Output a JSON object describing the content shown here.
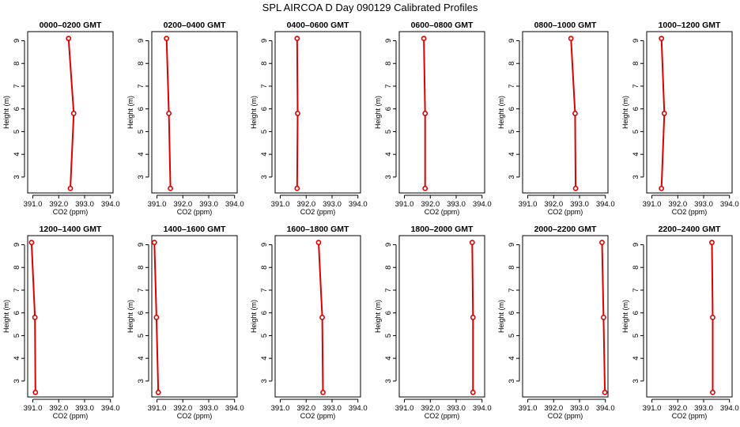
{
  "title": "SPL AIRCOA D  Day 090129  Calibrated Profiles",
  "colors": {
    "profile": "#dd0000",
    "axes": "#000000",
    "background": "#ffffff"
  },
  "chart_data": [
    {
      "type": "line",
      "title": "0000–0200 GMT",
      "xlabel": "CO2 (ppm)",
      "ylabel": "Height (m)",
      "xlim": [
        390.8,
        394.1
      ],
      "ylim": [
        2.3,
        9.4
      ],
      "x_ticks": [
        "391.0",
        "392.0",
        "393.0",
        "394.0"
      ],
      "y_ticks": [
        "3",
        "4",
        "5",
        "6",
        "7",
        "8",
        "9"
      ],
      "series": [
        {
          "x": [
            392.45,
            392.58,
            392.38
          ],
          "y": [
            2.5,
            5.8,
            9.1
          ]
        }
      ]
    },
    {
      "type": "line",
      "title": "0200–0400 GMT",
      "xlabel": "CO2 (ppm)",
      "ylabel": "Height (m)",
      "xlim": [
        390.8,
        394.1
      ],
      "ylim": [
        2.3,
        9.4
      ],
      "x_ticks": [
        "391.0",
        "392.0",
        "393.0",
        "394.0"
      ],
      "y_ticks": [
        "3",
        "4",
        "5",
        "6",
        "7",
        "8",
        "9"
      ],
      "series": [
        {
          "x": [
            391.52,
            391.46,
            391.37
          ],
          "y": [
            2.5,
            5.8,
            9.1
          ]
        }
      ]
    },
    {
      "type": "line",
      "title": "0400–0600 GMT",
      "xlabel": "CO2 (ppm)",
      "ylabel": "Height (m)",
      "xlim": [
        390.8,
        394.1
      ],
      "ylim": [
        2.3,
        9.4
      ],
      "x_ticks": [
        "391.0",
        "392.0",
        "393.0",
        "394.0"
      ],
      "y_ticks": [
        "3",
        "4",
        "5",
        "6",
        "7",
        "8",
        "9"
      ],
      "series": [
        {
          "x": [
            391.65,
            391.67,
            391.65
          ],
          "y": [
            2.5,
            5.8,
            9.1
          ]
        }
      ]
    },
    {
      "type": "line",
      "title": "0600–0800 GMT",
      "xlabel": "CO2 (ppm)",
      "ylabel": "Height (m)",
      "xlim": [
        390.8,
        394.1
      ],
      "ylim": [
        2.3,
        9.4
      ],
      "x_ticks": [
        "391.0",
        "392.0",
        "393.0",
        "394.0"
      ],
      "y_ticks": [
        "3",
        "4",
        "5",
        "6",
        "7",
        "8",
        "9"
      ],
      "series": [
        {
          "x": [
            391.8,
            391.8,
            391.75
          ],
          "y": [
            2.5,
            5.8,
            9.1
          ]
        }
      ]
    },
    {
      "type": "line",
      "title": "0800–1000 GMT",
      "xlabel": "CO2 (ppm)",
      "ylabel": "Height (m)",
      "xlim": [
        390.8,
        394.1
      ],
      "ylim": [
        2.3,
        9.4
      ],
      "x_ticks": [
        "391.0",
        "392.0",
        "393.0",
        "394.0"
      ],
      "y_ticks": [
        "3",
        "4",
        "5",
        "6",
        "7",
        "8",
        "9"
      ],
      "series": [
        {
          "x": [
            392.85,
            392.83,
            392.67
          ],
          "y": [
            2.5,
            5.8,
            9.1
          ]
        }
      ]
    },
    {
      "type": "line",
      "title": "1000–1200 GMT",
      "xlabel": "CO2 (ppm)",
      "ylabel": "Height (m)",
      "xlim": [
        390.8,
        394.1
      ],
      "ylim": [
        2.3,
        9.4
      ],
      "x_ticks": [
        "391.0",
        "392.0",
        "393.0",
        "394.0"
      ],
      "y_ticks": [
        "3",
        "4",
        "5",
        "6",
        "7",
        "8",
        "9"
      ],
      "series": [
        {
          "x": [
            391.37,
            391.48,
            391.37
          ],
          "y": [
            2.5,
            5.8,
            9.1
          ]
        }
      ]
    },
    {
      "type": "line",
      "title": "1200–1400 GMT",
      "xlabel": "CO2 (ppm)",
      "ylabel": "Height (m)",
      "xlim": [
        390.8,
        394.1
      ],
      "ylim": [
        2.3,
        9.4
      ],
      "x_ticks": [
        "391.0",
        "392.0",
        "393.0",
        "394.0"
      ],
      "y_ticks": [
        "3",
        "4",
        "5",
        "6",
        "7",
        "8",
        "9"
      ],
      "series": [
        {
          "x": [
            391.1,
            391.08,
            390.95
          ],
          "y": [
            2.5,
            5.8,
            9.1
          ]
        }
      ]
    },
    {
      "type": "line",
      "title": "1400–1600 GMT",
      "xlabel": "CO2 (ppm)",
      "ylabel": "Height (m)",
      "xlim": [
        390.8,
        394.1
      ],
      "ylim": [
        2.3,
        9.4
      ],
      "x_ticks": [
        "391.0",
        "392.0",
        "393.0",
        "394.0"
      ],
      "y_ticks": [
        "3",
        "4",
        "5",
        "6",
        "7",
        "8",
        "9"
      ],
      "series": [
        {
          "x": [
            391.05,
            390.98,
            390.9
          ],
          "y": [
            2.5,
            5.8,
            9.1
          ]
        }
      ]
    },
    {
      "type": "line",
      "title": "1600–1800 GMT",
      "xlabel": "CO2 (ppm)",
      "ylabel": "Height (m)",
      "xlim": [
        390.8,
        394.1
      ],
      "ylim": [
        2.3,
        9.4
      ],
      "x_ticks": [
        "391.0",
        "392.0",
        "393.0",
        "394.0"
      ],
      "y_ticks": [
        "3",
        "4",
        "5",
        "6",
        "7",
        "8",
        "9"
      ],
      "series": [
        {
          "x": [
            392.65,
            392.62,
            392.48
          ],
          "y": [
            2.5,
            5.8,
            9.1
          ]
        }
      ]
    },
    {
      "type": "line",
      "title": "1800–2000 GMT",
      "xlabel": "CO2 (ppm)",
      "ylabel": "Height (m)",
      "xlim": [
        390.8,
        394.1
      ],
      "ylim": [
        2.3,
        9.4
      ],
      "x_ticks": [
        "391.0",
        "392.0",
        "393.0",
        "394.0"
      ],
      "y_ticks": [
        "3",
        "4",
        "5",
        "6",
        "7",
        "8",
        "9"
      ],
      "series": [
        {
          "x": [
            393.65,
            393.65,
            393.62
          ],
          "y": [
            2.5,
            5.8,
            9.1
          ]
        }
      ]
    },
    {
      "type": "line",
      "title": "2000–2200 GMT",
      "xlabel": "CO2 (ppm)",
      "ylabel": "Height (m)",
      "xlim": [
        390.8,
        394.1
      ],
      "ylim": [
        2.3,
        9.4
      ],
      "x_ticks": [
        "391.0",
        "392.0",
        "393.0",
        "394.0"
      ],
      "y_ticks": [
        "3",
        "4",
        "5",
        "6",
        "7",
        "8",
        "9"
      ],
      "series": [
        {
          "x": [
            393.98,
            393.93,
            393.87
          ],
          "y": [
            2.5,
            5.8,
            9.1
          ]
        }
      ]
    },
    {
      "type": "line",
      "title": "2200–2400 GMT",
      "xlabel": "CO2 (ppm)",
      "ylabel": "Height (m)",
      "xlim": [
        390.8,
        394.1
      ],
      "ylim": [
        2.3,
        9.4
      ],
      "x_ticks": [
        "391.0",
        "392.0",
        "393.0",
        "394.0"
      ],
      "y_ticks": [
        "3",
        "4",
        "5",
        "6",
        "7",
        "8",
        "9"
      ],
      "series": [
        {
          "x": [
            393.35,
            393.35,
            393.32
          ],
          "y": [
            2.5,
            5.8,
            9.1
          ]
        }
      ]
    }
  ]
}
